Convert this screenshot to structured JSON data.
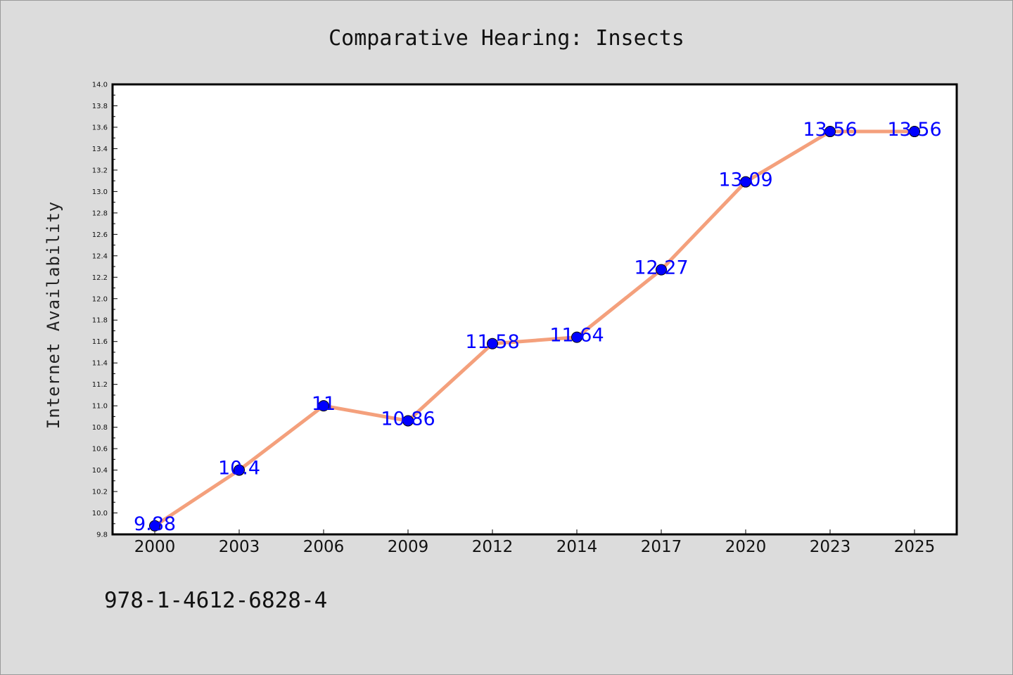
{
  "chart_data": {
    "type": "line",
    "title": "Comparative Hearing: Insects",
    "xlabel": "",
    "ylabel": "Internet Availability",
    "categories": [
      "2000",
      "2003",
      "2006",
      "2009",
      "2012",
      "2014",
      "2017",
      "2020",
      "2023",
      "2025"
    ],
    "series": [
      {
        "values": [
          9.88,
          10.4,
          11,
          10.86,
          11.58,
          11.64,
          12.27,
          13.09,
          13.56,
          13.56
        ],
        "data_labels": [
          "9.88",
          "10.4",
          "11",
          "10.86",
          "11.58",
          "11.64",
          "12.27",
          "13.09",
          "13.56",
          "13.56"
        ],
        "line_color": "#f4a07c",
        "marker_color": "#0000ff"
      }
    ],
    "ylim": [
      9.8,
      14.0
    ],
    "yticks": [
      "9.8",
      "10.0",
      "10.2",
      "10.4",
      "10.6",
      "10.8",
      "11.0",
      "11.2",
      "11.4",
      "11.6",
      "11.8",
      "12.0",
      "12.2",
      "12.4",
      "12.6",
      "12.8",
      "13.0",
      "13.2",
      "13.4",
      "13.6",
      "13.8",
      "14.0"
    ],
    "grid": false,
    "legend": "none"
  },
  "footnote": "978-1-4612-6828-4",
  "colors": {
    "background": "#dcdcdc",
    "plot_background": "#ffffff",
    "line": "#f4a07c",
    "marker": "#0000ff",
    "data_label": "#0000ff"
  }
}
